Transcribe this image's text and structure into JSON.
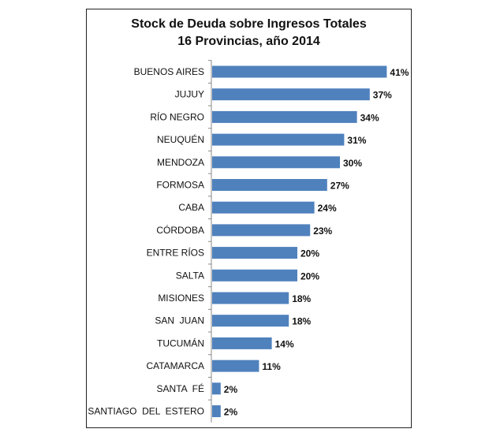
{
  "chart_data": {
    "type": "bar",
    "orientation": "horizontal",
    "title": "Stock de Deuda sobre Ingresos Totales",
    "subtitle": "16 Provincias, año 2014",
    "categories": [
      "BUENOS AIRES",
      "JUJUY",
      "RÍO NEGRO",
      "NEUQUÉN",
      "MENDOZA",
      "FORMOSA",
      "CABA",
      "CÓRDOBA",
      "ENTRE RÍOS",
      "SALTA",
      "MISIONES",
      "SAN  JUAN",
      "TUCUMÁN",
      "CATAMARCA",
      "SANTA  FÉ",
      "SANTIAGO  DEL  ESTERO"
    ],
    "values": [
      41,
      37,
      34,
      31,
      30,
      27,
      24,
      23,
      20,
      20,
      18,
      18,
      14,
      11,
      2,
      2
    ],
    "value_labels": [
      "41%",
      "37%",
      "34%",
      "31%",
      "30%",
      "27%",
      "24%",
      "23%",
      "20%",
      "20%",
      "18%",
      "18%",
      "14%",
      "11%",
      "2%",
      "2%"
    ],
    "unit": "%",
    "bar_color": "#4f81bd",
    "grid": false,
    "legend": "none"
  }
}
